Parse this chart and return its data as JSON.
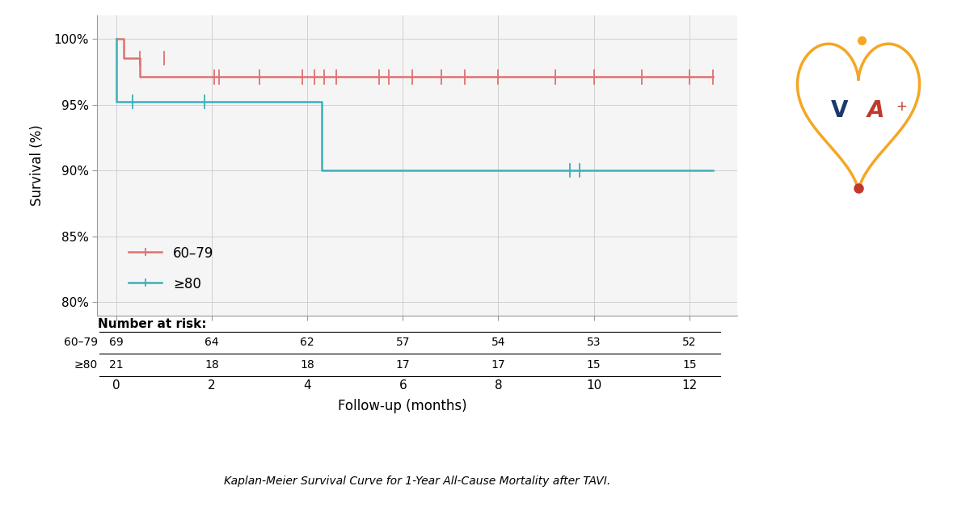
{
  "title": "Kaplan-Meier Survival Curve for 1-Year All-Cause Mortality after TAVI.",
  "xlabel": "Follow-up (months)",
  "ylabel": "Survival (%)",
  "plot_bg_color": "#f5f5f5",
  "grid_color": "#d0d0d0",
  "ylim": [
    79.0,
    101.8
  ],
  "xlim": [
    -0.4,
    13.0
  ],
  "yticks": [
    80,
    85,
    90,
    95,
    100
  ],
  "xticks": [
    0,
    2,
    4,
    6,
    8,
    10,
    12
  ],
  "group1_color": "#E07070",
  "group2_color": "#3BAFB8",
  "group1_label": "60–79",
  "group2_label": "≥80",
  "group1_x": [
    0,
    0.15,
    0.5,
    1.85,
    12.5
  ],
  "group1_y": [
    100,
    98.55,
    97.1,
    97.1,
    97.1
  ],
  "group2_x": [
    0,
    0,
    1.85,
    4.3,
    9.5,
    12.5
  ],
  "group2_y": [
    100,
    95.24,
    95.24,
    90.0,
    90.0,
    90.0
  ],
  "group1_censor_times_high": [
    0.5,
    1.0
  ],
  "group1_censor_y_high": 98.55,
  "group1_censor_times_low": [
    2.05,
    2.15,
    3.0,
    3.9,
    4.15,
    4.35,
    4.6,
    5.5,
    5.7,
    6.2,
    6.8,
    7.3,
    8.0,
    9.2,
    10.0,
    11.0,
    12.0,
    12.5
  ],
  "group1_censor_y_low": 97.1,
  "group2_censor_times_high": [
    0.35,
    1.85
  ],
  "group2_censor_y_high": 95.24,
  "group2_censor_times_low": [
    9.5,
    9.7
  ],
  "group2_censor_y_low": 90.0,
  "number_at_risk": {
    "times": [
      0,
      2,
      4,
      6,
      8,
      10,
      12
    ],
    "group1": [
      69,
      64,
      62,
      57,
      54,
      53,
      52
    ],
    "group2": [
      21,
      18,
      18,
      17,
      17,
      15,
      15
    ]
  }
}
